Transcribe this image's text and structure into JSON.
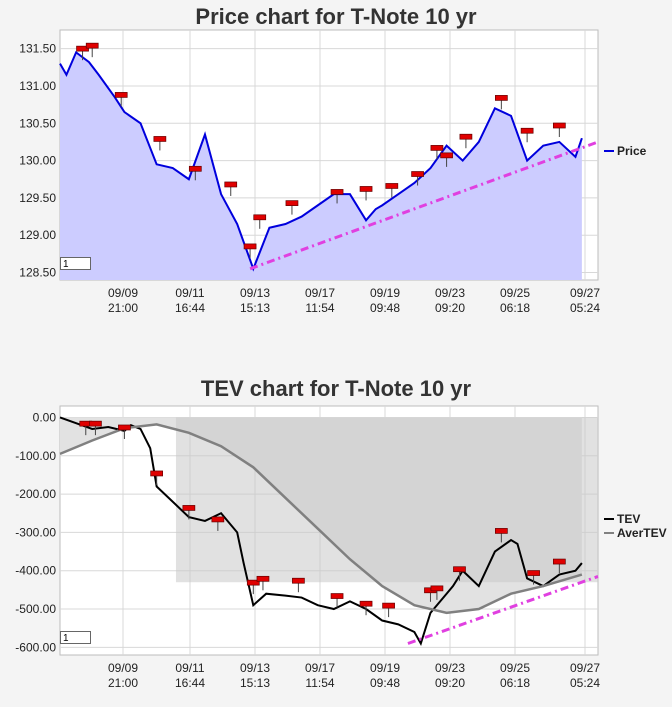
{
  "chart_data": [
    {
      "type": "line",
      "title": "Price chart for T-Note 10 yr",
      "xlabel": "",
      "ylabel": "",
      "ylim": [
        128.4,
        131.75
      ],
      "yticks": [
        128.5,
        129.0,
        129.5,
        130.0,
        130.5,
        131.0,
        131.5
      ],
      "ytick_labels": [
        "128.50",
        "129.00",
        "129.50",
        "130.00",
        "130.50",
        "131.00",
        "131.50"
      ],
      "x_ticks": [
        {
          "date": "09/09",
          "time": "21:00"
        },
        {
          "date": "09/11",
          "time": "16:44"
        },
        {
          "date": "09/13",
          "time": "15:13"
        },
        {
          "date": "09/17",
          "time": "11:54"
        },
        {
          "date": "09/19",
          "time": "09:48"
        },
        {
          "date": "09/23",
          "time": "09:20"
        },
        {
          "date": "09/25",
          "time": "06:18"
        },
        {
          "date": "09/27",
          "time": "05:24"
        }
      ],
      "grid": true,
      "legend": "right",
      "series": [
        {
          "name": "Price",
          "color": "#0000dd",
          "fill": "#ccccff",
          "x": [
            0,
            0.1,
            0.25,
            0.45,
            0.6,
            0.85,
            1.0,
            1.25,
            1.5,
            1.75,
            2.0,
            2.25,
            2.5,
            2.75,
            3.0,
            3.25,
            3.5,
            3.75,
            4.0,
            4.25,
            4.5,
            4.75,
            4.9,
            5.0,
            5.25,
            5.5,
            5.75,
            6.0,
            6.25,
            6.5,
            6.75,
            7.0,
            7.25,
            7.5,
            7.75,
            8.0,
            8.1
          ],
          "values": [
            131.3,
            131.15,
            131.45,
            131.32,
            131.15,
            130.85,
            130.65,
            130.5,
            129.95,
            129.9,
            129.75,
            130.35,
            129.55,
            129.15,
            128.55,
            129.1,
            129.15,
            129.25,
            129.4,
            129.55,
            129.55,
            129.2,
            129.35,
            129.4,
            129.55,
            129.7,
            129.9,
            130.2,
            130.0,
            130.25,
            130.7,
            130.6,
            130.0,
            130.2,
            130.25,
            130.05,
            130.3
          ]
        }
      ],
      "signals": [
        {
          "x": 0.35,
          "y": 131.48
        },
        {
          "x": 0.5,
          "y": 131.52
        },
        {
          "x": 0.95,
          "y": 130.86
        },
        {
          "x": 1.55,
          "y": 130.27
        },
        {
          "x": 2.1,
          "y": 129.87
        },
        {
          "x": 2.65,
          "y": 129.66
        },
        {
          "x": 2.95,
          "y": 128.83
        },
        {
          "x": 3.1,
          "y": 129.22
        },
        {
          "x": 3.6,
          "y": 129.41
        },
        {
          "x": 4.3,
          "y": 129.56
        },
        {
          "x": 4.75,
          "y": 129.6
        },
        {
          "x": 5.15,
          "y": 129.64
        },
        {
          "x": 5.55,
          "y": 129.8
        },
        {
          "x": 5.85,
          "y": 130.15
        },
        {
          "x": 6.0,
          "y": 130.05
        },
        {
          "x": 6.3,
          "y": 130.3
        },
        {
          "x": 6.85,
          "y": 130.82
        },
        {
          "x": 7.25,
          "y": 130.38
        },
        {
          "x": 7.75,
          "y": 130.45
        }
      ],
      "trendline": {
        "color": "#e040e0",
        "x": [
          2.95,
          8.35
        ],
        "y": [
          128.55,
          130.25
        ]
      }
    },
    {
      "type": "line",
      "title": "TEV chart for T-Note 10 yr",
      "xlabel": "",
      "ylabel": "",
      "ylim": [
        -620,
        30
      ],
      "yticks": [
        -600,
        -500,
        -400,
        -300,
        -200,
        -100,
        0
      ],
      "ytick_labels": [
        "-600.00",
        "-500.00",
        "-400.00",
        "-300.00",
        "-200.00",
        "-100.00",
        "0.00"
      ],
      "x_ticks": [
        {
          "date": "09/09",
          "time": "21:00"
        },
        {
          "date": "09/11",
          "time": "16:44"
        },
        {
          "date": "09/13",
          "time": "15:13"
        },
        {
          "date": "09/17",
          "time": "11:54"
        },
        {
          "date": "09/19",
          "time": "09:48"
        },
        {
          "date": "09/23",
          "time": "09:20"
        },
        {
          "date": "09/25",
          "time": "06:18"
        },
        {
          "date": "09/27",
          "time": "05:24"
        }
      ],
      "grid": true,
      "legend": "right",
      "series": [
        {
          "name": "TEV",
          "color": "#000000",
          "x": [
            0,
            0.25,
            0.5,
            0.75,
            1.0,
            1.1,
            1.25,
            1.4,
            1.5,
            1.75,
            2.0,
            2.25,
            2.5,
            2.75,
            2.85,
            3.0,
            3.2,
            3.5,
            3.75,
            4.0,
            4.25,
            4.5,
            4.75,
            5.0,
            5.25,
            5.5,
            5.6,
            5.75,
            6.0,
            6.1,
            6.25,
            6.5,
            6.75,
            7.0,
            7.1,
            7.25,
            7.5,
            7.75,
            8.0,
            8.1
          ],
          "values": [
            0,
            -15,
            -30,
            -25,
            -35,
            -20,
            -30,
            -80,
            -180,
            -220,
            -260,
            -270,
            -250,
            -300,
            -380,
            -490,
            -460,
            -465,
            -470,
            -490,
            -500,
            -480,
            -500,
            -530,
            -540,
            -560,
            -590,
            -510,
            -460,
            -440,
            -400,
            -440,
            -350,
            -320,
            -330,
            -420,
            -440,
            -410,
            -400,
            -380
          ]
        },
        {
          "name": "AverTEV",
          "color": "#808080",
          "x": [
            0,
            0.5,
            1.0,
            1.5,
            2.0,
            2.5,
            3.0,
            3.5,
            4.0,
            4.5,
            5.0,
            5.5,
            6.0,
            6.5,
            7.0,
            7.5,
            8.1
          ],
          "values": [
            -95,
            -60,
            -28,
            -18,
            -40,
            -75,
            -130,
            -210,
            -290,
            -370,
            -440,
            -490,
            -510,
            -500,
            -460,
            -440,
            -410
          ]
        }
      ],
      "signals": [
        {
          "x": 0.4,
          "y": -20
        },
        {
          "x": 0.55,
          "y": -20
        },
        {
          "x": 1.0,
          "y": -30
        },
        {
          "x": 1.5,
          "y": -150
        },
        {
          "x": 2.0,
          "y": -240
        },
        {
          "x": 2.45,
          "y": -270
        },
        {
          "x": 3.0,
          "y": -435
        },
        {
          "x": 3.15,
          "y": -425
        },
        {
          "x": 3.7,
          "y": -430
        },
        {
          "x": 4.3,
          "y": -470
        },
        {
          "x": 4.75,
          "y": -490
        },
        {
          "x": 5.1,
          "y": -495
        },
        {
          "x": 5.75,
          "y": -455
        },
        {
          "x": 5.85,
          "y": -450
        },
        {
          "x": 6.2,
          "y": -400
        },
        {
          "x": 6.85,
          "y": -300
        },
        {
          "x": 7.35,
          "y": -410
        },
        {
          "x": 7.75,
          "y": -380
        }
      ],
      "trendline": {
        "color": "#e040e0",
        "x": [
          5.4,
          8.35
        ],
        "y": [
          -590,
          -415
        ]
      }
    }
  ]
}
